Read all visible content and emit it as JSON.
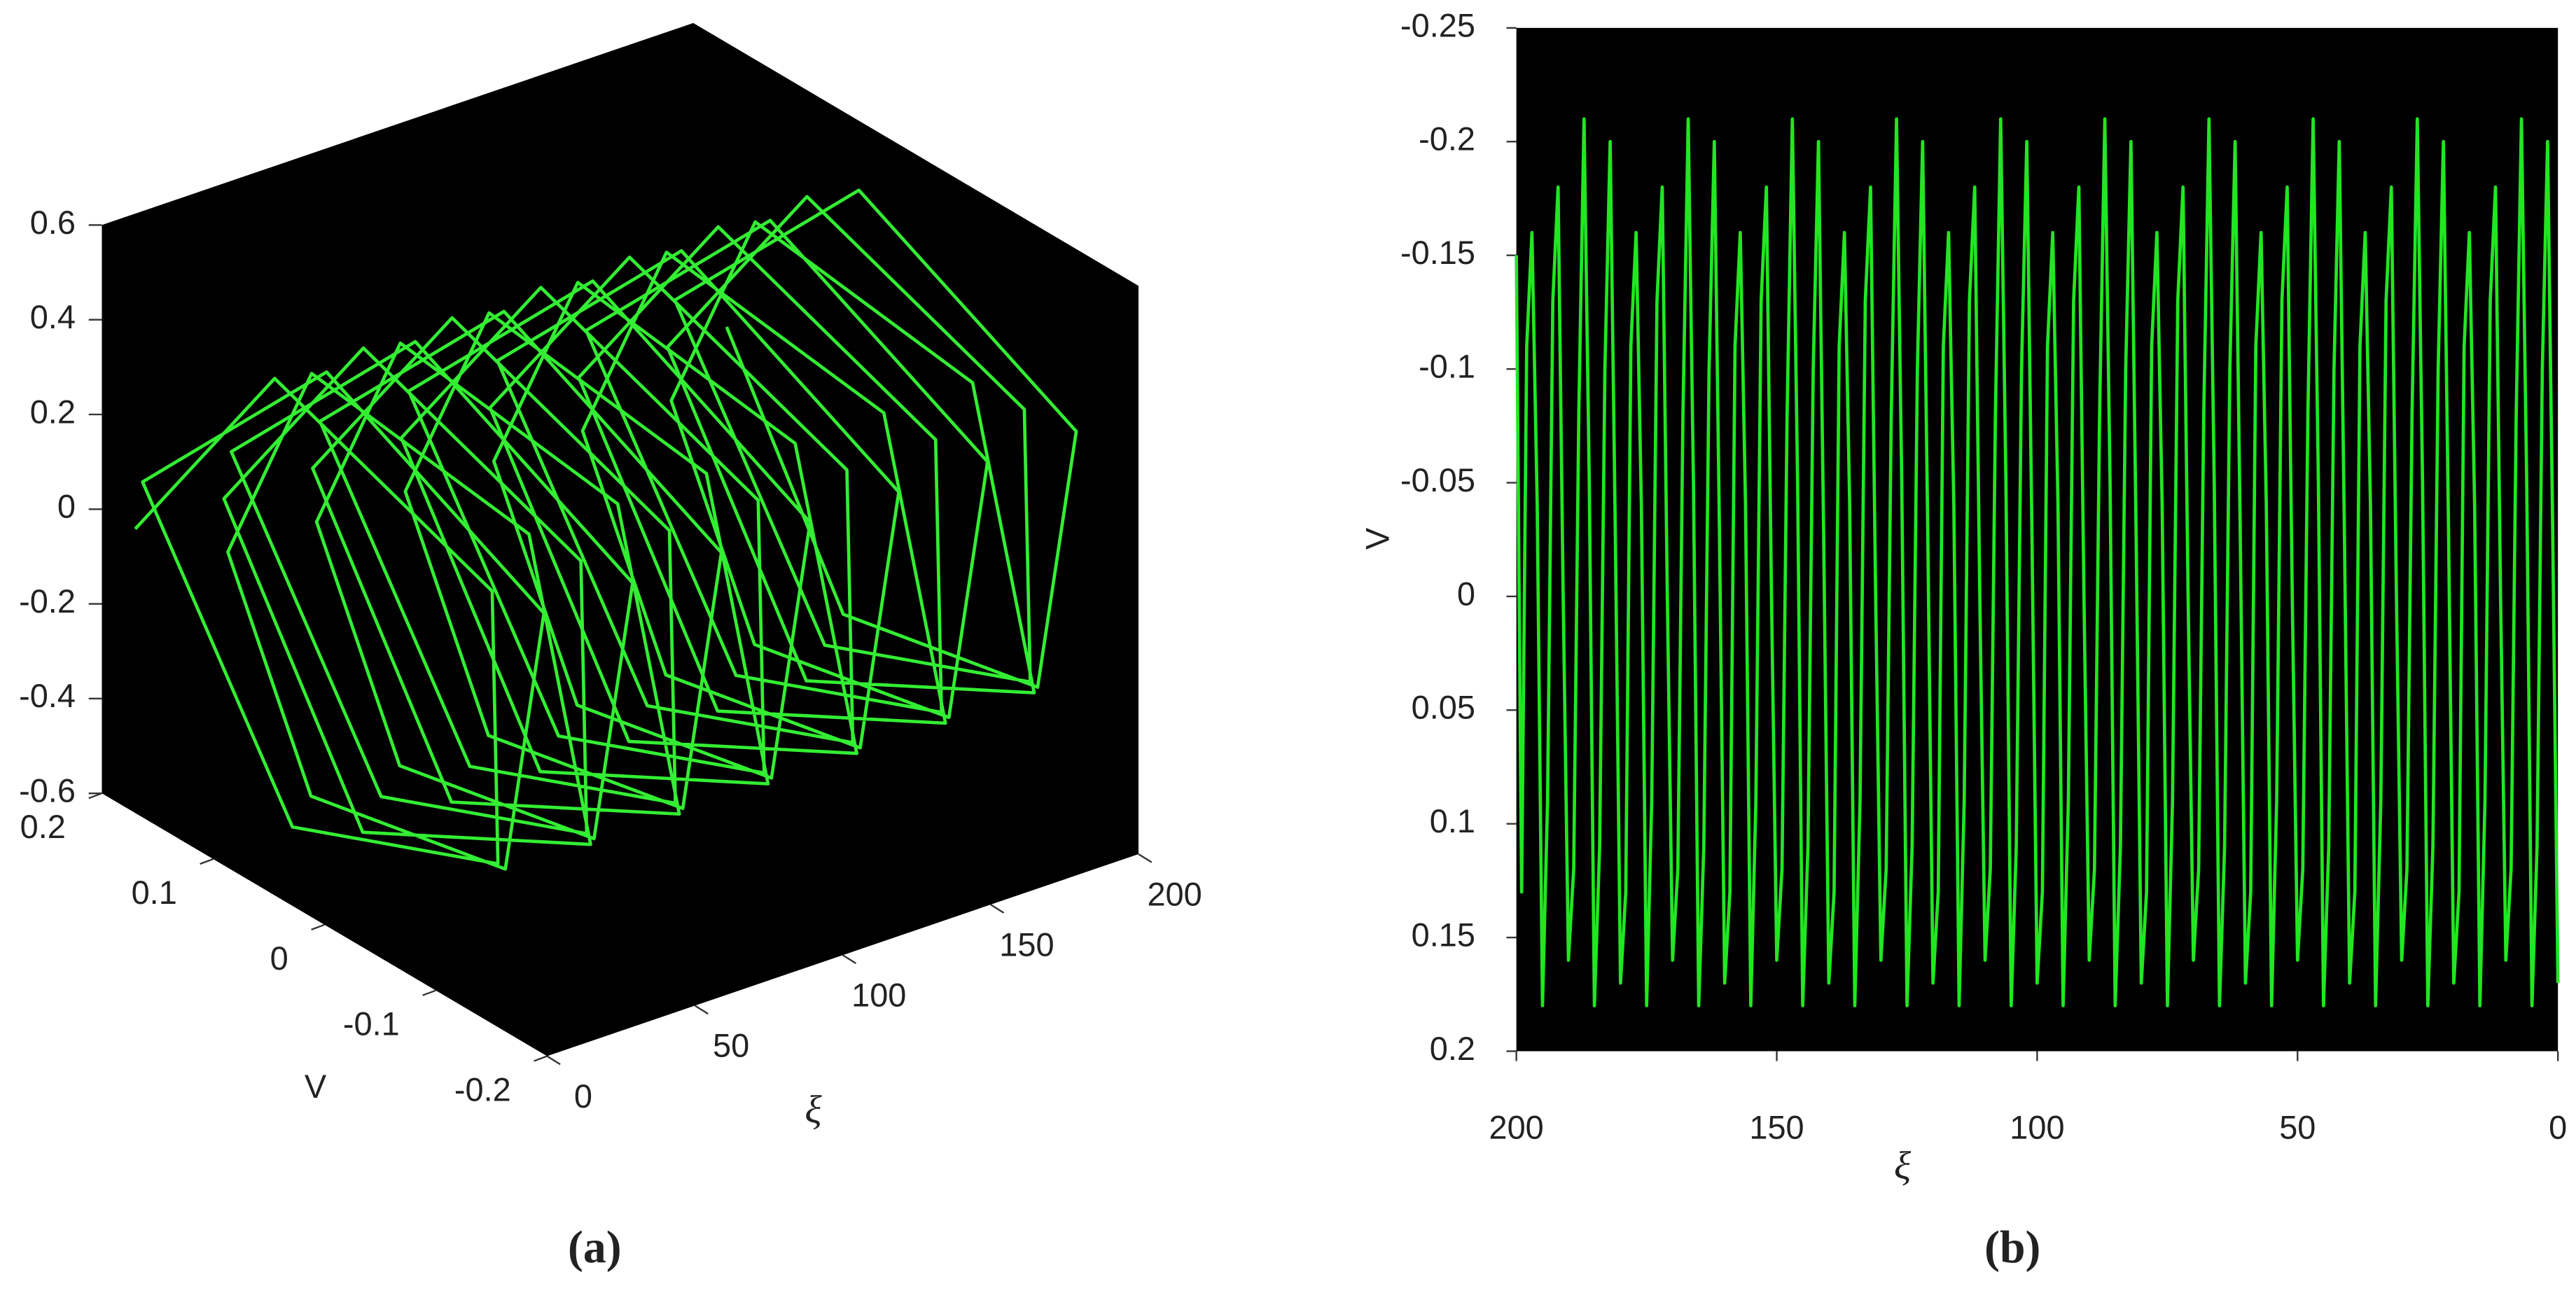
{
  "chart_data": [
    {
      "type": "line3d",
      "caption": "(a)",
      "xlabel": "ξ",
      "ylabel": "V",
      "xlim": [
        0,
        200
      ],
      "xticks": [
        0,
        50,
        100,
        150,
        200
      ],
      "ylim": [
        -0.2,
        0.2
      ],
      "yticks": [
        -0.2,
        -0.1,
        0,
        0.1,
        0.2
      ],
      "zlim": [
        -0.6,
        0.6
      ],
      "zticks": [
        -0.6,
        -0.4,
        -0.2,
        0,
        0.2,
        0.4,
        0.6
      ],
      "x": [
        0,
        2,
        4,
        6,
        8,
        10,
        12,
        14,
        16,
        18,
        20,
        22,
        24,
        26,
        28,
        30,
        32,
        34,
        36,
        38,
        40,
        42,
        44,
        46,
        48,
        50,
        52,
        54,
        56,
        58,
        60,
        62,
        64,
        66,
        68,
        70,
        72,
        74,
        76,
        78,
        80,
        82,
        84,
        86,
        88,
        90,
        92,
        94,
        96,
        98,
        100,
        102,
        104,
        106,
        108,
        110,
        112,
        114,
        116,
        118,
        120,
        122,
        124,
        126,
        128,
        130,
        132,
        134,
        136,
        138,
        140,
        142,
        144,
        146,
        148,
        150,
        152,
        154,
        156,
        158,
        160,
        162,
        164,
        166,
        168,
        170,
        172,
        174,
        176,
        178,
        180,
        182,
        184,
        186,
        188,
        190,
        192,
        194,
        196,
        198,
        200
      ],
      "series": [
        {
          "color": "#33ee33",
          "y": [
            0.17,
            0.05,
            -0.14,
            -0.14,
            0.05,
            0.19,
            0.03,
            -0.16,
            -0.12,
            0.06,
            0.14,
            0.07,
            -0.12,
            -0.17,
            0.04,
            0.17,
            0.05,
            -0.14,
            -0.14,
            0.05,
            0.19,
            0.03,
            -0.16,
            -0.12,
            0.06,
            0.14,
            0.07,
            -0.12,
            -0.17,
            0.04,
            0.17,
            0.05,
            -0.14,
            -0.14,
            0.05,
            0.19,
            0.03,
            -0.16,
            -0.12,
            0.06,
            0.14,
            0.07,
            -0.12,
            -0.17,
            0.04,
            0.17,
            0.05,
            -0.14,
            -0.14,
            0.05,
            0.19,
            0.03,
            -0.16,
            -0.12,
            0.06,
            0.14,
            0.07,
            -0.12,
            -0.17,
            0.04,
            0.17,
            0.05,
            -0.14,
            -0.14,
            0.05,
            0.19,
            0.03,
            -0.16,
            -0.12,
            0.06,
            0.14,
            0.07,
            -0.12,
            -0.17,
            0.04,
            0.17,
            0.05,
            -0.14,
            -0.14,
            0.05,
            0.19,
            0.03,
            -0.16,
            -0.12,
            0.06,
            0.14,
            0.07,
            -0.12,
            -0.17,
            0.04,
            0.17,
            0.05,
            -0.14,
            -0.14,
            0.05,
            0.19,
            0.03,
            -0.16,
            -0.12,
            0.06,
            0.17
          ],
          "z": [
            0,
            0.48,
            0.29,
            -0.29,
            -0.48,
            0.05,
            0.5,
            0.25,
            -0.35,
            -0.45,
            -0.05,
            0.42,
            0.34,
            -0.25,
            -0.52,
            0,
            0.48,
            0.29,
            -0.29,
            -0.48,
            0.05,
            0.5,
            0.25,
            -0.35,
            -0.45,
            -0.05,
            0.42,
            0.34,
            -0.25,
            -0.52,
            0,
            0.48,
            0.29,
            -0.29,
            -0.48,
            0.05,
            0.5,
            0.25,
            -0.35,
            -0.45,
            -0.05,
            0.42,
            0.34,
            -0.25,
            -0.52,
            0,
            0.48,
            0.29,
            -0.29,
            -0.48,
            0.05,
            0.5,
            0.25,
            -0.35,
            -0.45,
            -0.05,
            0.42,
            0.34,
            -0.25,
            -0.52,
            0,
            0.48,
            0.29,
            -0.29,
            -0.48,
            0.05,
            0.5,
            0.25,
            -0.35,
            -0.45,
            -0.05,
            0.42,
            0.34,
            -0.25,
            -0.52,
            0,
            0.48,
            0.29,
            -0.29,
            -0.48,
            0.05,
            0.5,
            0.25,
            -0.35,
            -0.45,
            -0.05,
            0.42,
            0.34,
            -0.25,
            -0.52,
            0,
            0.48,
            0.29,
            -0.29,
            -0.48,
            0.05,
            0.5,
            0.25,
            -0.35,
            -0.45,
            0
          ]
        }
      ]
    },
    {
      "type": "line",
      "caption": "(b)",
      "xlabel": "ξ",
      "ylabel": "V",
      "xlim": [
        200,
        0
      ],
      "xticks": [
        200,
        150,
        100,
        50,
        0
      ],
      "ylim": [
        0.2,
        -0.25
      ],
      "yticks": [
        -0.25,
        -0.2,
        -0.15,
        -0.1,
        -0.05,
        0,
        0.05,
        0.1,
        0.15,
        0.2
      ],
      "x": [
        0,
        1,
        2,
        3,
        4,
        5,
        6,
        7,
        8,
        9,
        10,
        11,
        12,
        13,
        14,
        15,
        16,
        17,
        18,
        19,
        20,
        21,
        22,
        23,
        24,
        25,
        26,
        27,
        28,
        29,
        30,
        31,
        32,
        33,
        34,
        35,
        36,
        37,
        38,
        39,
        40,
        41,
        42,
        43,
        44,
        45,
        46,
        47,
        48,
        49,
        50,
        51,
        52,
        53,
        54,
        55,
        56,
        57,
        58,
        59,
        60,
        61,
        62,
        63,
        64,
        65,
        66,
        67,
        68,
        69,
        70,
        71,
        72,
        73,
        74,
        75,
        76,
        77,
        78,
        79,
        80,
        81,
        82,
        83,
        84,
        85,
        86,
        87,
        88,
        89,
        90,
        91,
        92,
        93,
        94,
        95,
        96,
        97,
        98,
        99,
        100,
        101,
        102,
        103,
        104,
        105,
        106,
        107,
        108,
        109,
        110,
        111,
        112,
        113,
        114,
        115,
        116,
        117,
        118,
        119,
        120,
        121,
        122,
        123,
        124,
        125,
        126,
        127,
        128,
        129,
        130,
        131,
        132,
        133,
        134,
        135,
        136,
        137,
        138,
        139,
        140,
        141,
        142,
        143,
        144,
        145,
        146,
        147,
        148,
        149,
        150,
        151,
        152,
        153,
        154,
        155,
        156,
        157,
        158,
        159,
        160,
        161,
        162,
        163,
        164,
        165,
        166,
        167,
        168,
        169,
        170,
        171,
        172,
        173,
        174,
        175,
        176,
        177,
        178,
        179,
        180,
        181,
        182,
        183,
        184,
        185,
        186,
        187,
        188,
        189,
        190,
        191,
        192,
        193,
        194,
        195,
        196,
        197,
        198,
        199,
        200
      ],
      "series": [
        {
          "color": "#22e622",
          "values": [
            0.17,
            -0.03,
            -0.2,
            -0.1,
            0.11,
            0.18,
            -0.05,
            -0.21,
            -0.08,
            0.12,
            0.16,
            0,
            -0.18,
            -0.13,
            0.09,
            0.18,
            -0.04,
            -0.16,
            -0.11,
            0.13,
            0.17,
            -0.03,
            -0.2,
            -0.1,
            0.11,
            0.18,
            -0.05,
            -0.21,
            -0.08,
            0.12,
            0.16,
            0,
            -0.18,
            -0.13,
            0.09,
            0.18,
            -0.04,
            -0.16,
            -0.11,
            0.13,
            0.17,
            -0.03,
            -0.2,
            -0.1,
            0.11,
            0.18,
            -0.05,
            -0.21,
            -0.08,
            0.12,
            0.16,
            0,
            -0.18,
            -0.13,
            0.09,
            0.18,
            -0.04,
            -0.16,
            -0.11,
            0.13,
            0.17,
            -0.03,
            -0.2,
            -0.1,
            0.11,
            0.18,
            -0.05,
            -0.21,
            -0.08,
            0.12,
            0.16,
            0,
            -0.18,
            -0.13,
            0.09,
            0.18,
            -0.04,
            -0.16,
            -0.11,
            0.13,
            0.17,
            -0.03,
            -0.2,
            -0.1,
            0.11,
            0.18,
            -0.05,
            -0.21,
            -0.08,
            0.12,
            0.16,
            0,
            -0.18,
            -0.13,
            0.09,
            0.18,
            -0.04,
            -0.16,
            -0.11,
            0.13,
            0.17,
            -0.03,
            -0.2,
            -0.1,
            0.11,
            0.18,
            -0.05,
            -0.21,
            -0.08,
            0.12,
            0.16,
            0,
            -0.18,
            -0.13,
            0.09,
            0.18,
            -0.04,
            -0.16,
            -0.11,
            0.13,
            0.17,
            -0.03,
            -0.2,
            -0.1,
            0.11,
            0.18,
            -0.05,
            -0.21,
            -0.08,
            0.12,
            0.16,
            0,
            -0.18,
            -0.13,
            0.09,
            0.18,
            -0.04,
            -0.16,
            -0.11,
            0.13,
            0.17,
            -0.03,
            -0.2,
            -0.1,
            0.11,
            0.18,
            -0.05,
            -0.21,
            -0.08,
            0.12,
            0.16,
            0,
            -0.18,
            -0.13,
            0.09,
            0.18,
            -0.04,
            -0.16,
            -0.11,
            0.13,
            0.17,
            -0.03,
            -0.2,
            -0.1,
            0.11,
            0.18,
            -0.05,
            -0.21,
            -0.08,
            0.12,
            0.16,
            0,
            -0.18,
            -0.13,
            0.09,
            0.18,
            -0.04,
            -0.16,
            -0.11,
            0.13,
            0.17,
            -0.03,
            -0.2,
            -0.1,
            0.11,
            0.18,
            -0.05,
            -0.21,
            -0.08,
            0.12,
            0.16,
            0,
            -0.18,
            -0.13,
            0.09,
            0.18,
            -0.04,
            -0.16,
            -0.11,
            0.13,
            -0.15
          ]
        }
      ]
    }
  ]
}
